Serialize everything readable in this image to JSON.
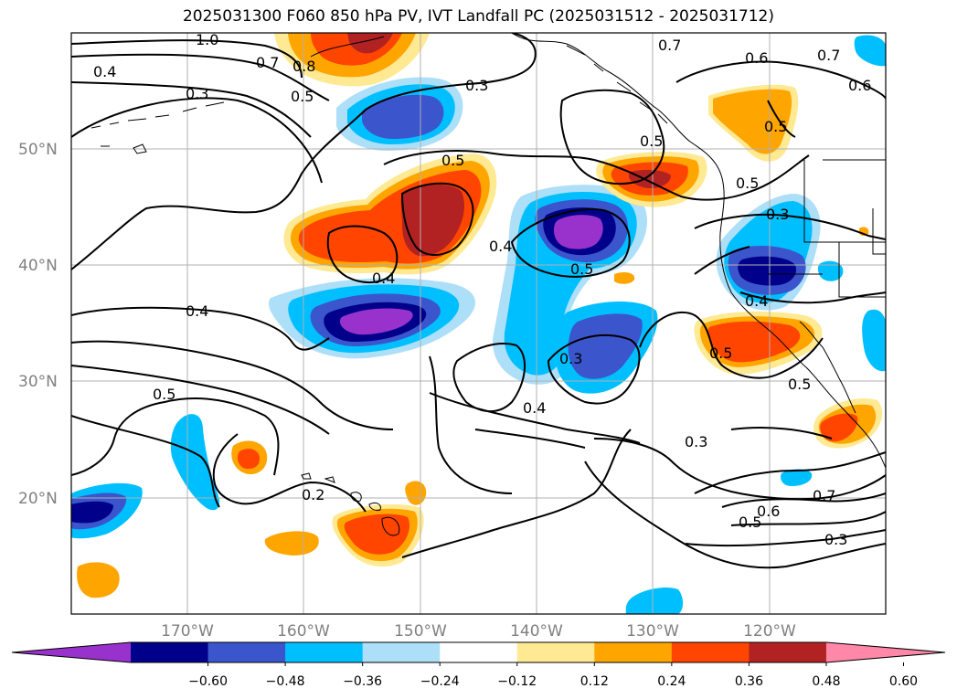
{
  "figure": {
    "title": "2025031300 F060 850 hPa PV, IVT Landfall PC (2025031512 - 2025031712)"
  },
  "map": {
    "projection": "PlateCarree",
    "extent_lon": [
      -180,
      -110
    ],
    "extent_lat": [
      10,
      60
    ],
    "lat_ticks": [
      {
        "value": 50,
        "label": "50°N"
      },
      {
        "value": 40,
        "label": "40°N"
      },
      {
        "value": 30,
        "label": "30°N"
      },
      {
        "value": 20,
        "label": "20°N"
      }
    ],
    "lon_ticks": [
      {
        "value": -170,
        "label": "170°W"
      },
      {
        "value": -160,
        "label": "160°W"
      },
      {
        "value": -150,
        "label": "150°W"
      },
      {
        "value": -140,
        "label": "140°W"
      },
      {
        "value": -130,
        "label": "130°W"
      },
      {
        "value": -120,
        "label": "120°W"
      }
    ],
    "gridlines": true,
    "contour_color": "#000000",
    "contour_labels": [
      {
        "text": "1.0"
      },
      {
        "text": "0.4"
      },
      {
        "text": "0.7"
      },
      {
        "text": "0.8"
      },
      {
        "text": "0.3"
      },
      {
        "text": "0.5"
      },
      {
        "text": "0.3"
      },
      {
        "text": "0.7"
      },
      {
        "text": "0.6"
      },
      {
        "text": "0.7"
      },
      {
        "text": "0.6"
      },
      {
        "text": "0.5"
      },
      {
        "text": "0.5"
      },
      {
        "text": "0.5"
      },
      {
        "text": "0.5"
      },
      {
        "text": "0.3"
      },
      {
        "text": "0.4"
      },
      {
        "text": "0.5"
      },
      {
        "text": "0.4"
      },
      {
        "text": "0.4"
      },
      {
        "text": "0.5"
      },
      {
        "text": "0.3"
      },
      {
        "text": "0.4"
      },
      {
        "text": "0.5"
      },
      {
        "text": "0.5"
      },
      {
        "text": "0.4"
      },
      {
        "text": "0.3"
      },
      {
        "text": "0.2"
      },
      {
        "text": "0.7"
      },
      {
        "text": "0.6"
      },
      {
        "text": "0.5"
      },
      {
        "text": "0.3"
      }
    ]
  },
  "colorbar": {
    "extend": "both",
    "colors": [
      "#9932CC",
      "#00008B",
      "#3B55CC",
      "#00BFFF",
      "#ADDFF8",
      "#FFFFFF",
      "#FFE993",
      "#FFA500",
      "#FF4500",
      "#B22222",
      "#FF88A8"
    ],
    "tick_values": [
      -0.6,
      -0.48,
      -0.36,
      -0.24,
      -0.12,
      0.12,
      0.24,
      0.36,
      0.48,
      0.6
    ],
    "tick_labels": [
      "−0.60",
      "−0.48",
      "−0.36",
      "−0.24",
      "−0.12",
      "0.12",
      "0.24",
      "0.36",
      "0.48",
      "0.60"
    ]
  }
}
